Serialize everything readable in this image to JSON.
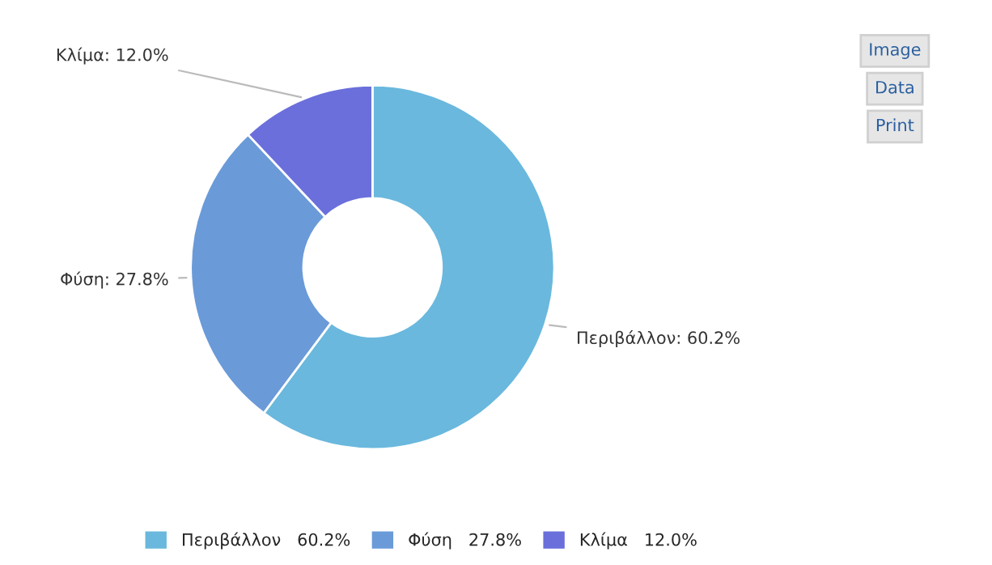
{
  "chart_data": {
    "type": "donut",
    "categories": [
      "Περιβάλλον",
      "Φύση",
      "Κλίμα"
    ],
    "values": [
      60.2,
      27.8,
      12.0
    ],
    "value_labels": [
      "60.2%",
      "27.8%",
      "12.0%"
    ],
    "colors": [
      "#6ab8dd",
      "#6a9ad8",
      "#6b6fdb"
    ],
    "legend": "bottom",
    "annotations": [
      "Image",
      "Data",
      "Print"
    ]
  }
}
